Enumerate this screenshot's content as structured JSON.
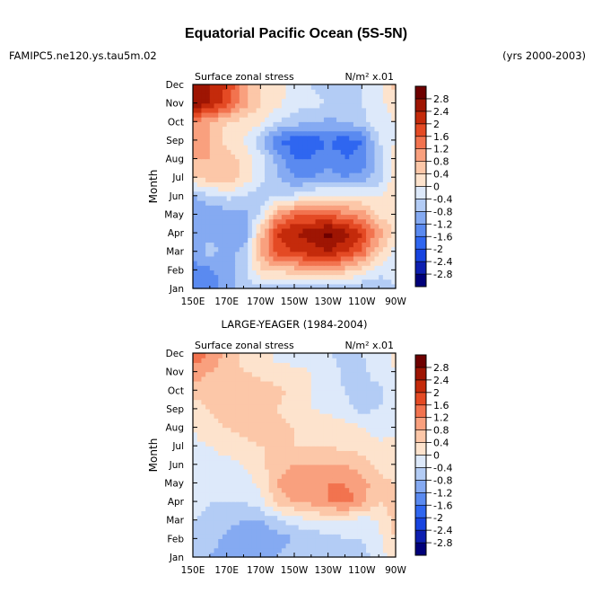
{
  "figure": {
    "title": "Equatorial Pacific Ocean (5S-5N)",
    "case_label": "FAMIPC5.ne120.ys.tau5m.02",
    "years_label": "(yrs 2000-2003)"
  },
  "colors": {
    "levels": [
      -2.8,
      -2.4,
      -2.0,
      -1.6,
      -1.2,
      -0.8,
      -0.4,
      0,
      0.4,
      0.8,
      1.2,
      1.6,
      2.0,
      2.4,
      2.8
    ],
    "palette": [
      "#00007a",
      "#0d1fb0",
      "#1744e0",
      "#2f66f0",
      "#5a8af0",
      "#85aaf2",
      "#b3ccf5",
      "#dde9fa",
      "#fde3cd",
      "#fcc7a8",
      "#f9a07e",
      "#f2734f",
      "#e44a24",
      "#c42a0b",
      "#9e1503",
      "#6e0000"
    ]
  },
  "chart_data": [
    {
      "type": "heatmap",
      "panel_title": "",
      "left_label": "Surface zonal stress",
      "right_label": "N/m² x.01",
      "ylabel": "Month",
      "x": [
        150,
        160,
        170,
        180,
        190,
        200,
        210,
        220,
        230,
        240,
        250,
        260,
        270
      ],
      "x_tick_values": [
        150,
        170,
        190,
        210,
        230,
        250,
        270
      ],
      "x_tick_labels": [
        "150E",
        "170E",
        "170W",
        "150W",
        "130W",
        "110W",
        "90W"
      ],
      "y_tick_labels": [
        "Jan",
        "Feb",
        "Mar",
        "Apr",
        "May",
        "Jun",
        "Jul",
        "Aug",
        "Sep",
        "Oct",
        "Nov",
        "Dec"
      ],
      "xlim": [
        150,
        270
      ],
      "ylim": [
        1,
        12
      ],
      "colorbar_labels": [
        "-2.8",
        "-2.4",
        "-2",
        "-1.6",
        "-1.2",
        "-0.8",
        "-0.4",
        "0",
        "0.4",
        "0.8",
        "1.2",
        "1.6",
        "2",
        "2.4",
        "2.8"
      ],
      "z": [
        [
          -1.3,
          -1.4,
          -1.1,
          -0.6,
          -0.5,
          -0.6,
          -0.8,
          -0.8,
          -0.6,
          -0.7,
          -0.8,
          -0.8,
          -0.4
        ],
        [
          -1.3,
          -1.3,
          -1.0,
          -0.5,
          0.3,
          0.5,
          0.6,
          0.8,
          0.9,
          0.6,
          0.2,
          -0.2,
          -0.3
        ],
        [
          -1.1,
          -0.6,
          -1.0,
          -0.7,
          0.8,
          1.8,
          2.0,
          2.2,
          2.4,
          2.0,
          1.5,
          0.5,
          -0.2
        ],
        [
          -1.2,
          -0.9,
          -1.2,
          -1.2,
          0.6,
          2.0,
          2.4,
          2.6,
          3.0,
          2.6,
          2.0,
          1.0,
          0.2
        ],
        [
          -1.2,
          -1.2,
          -1.0,
          -1.0,
          -0.3,
          1.0,
          1.5,
          1.6,
          1.6,
          1.3,
          1.0,
          0.3,
          0.2
        ],
        [
          -0.8,
          -0.5,
          -0.3,
          -0.4,
          -0.6,
          -0.4,
          -0.3,
          0.0,
          0.1,
          0.1,
          0.1,
          0.0,
          0.2
        ],
        [
          0.4,
          0.6,
          0.8,
          0.3,
          -0.3,
          -0.8,
          -1.2,
          -1.2,
          -1.0,
          -1.2,
          -1.0,
          -0.6,
          0.3
        ],
        [
          0.8,
          0.8,
          0.6,
          0.3,
          -0.2,
          -0.9,
          -1.6,
          -1.6,
          -1.4,
          -1.6,
          -1.5,
          -0.6,
          0.2
        ],
        [
          1.2,
          0.8,
          0.2,
          0.0,
          -0.7,
          -1.6,
          -1.8,
          -1.8,
          -1.6,
          -1.8,
          -1.6,
          -0.4,
          0.0
        ],
        [
          1.2,
          0.8,
          0.4,
          0.2,
          0.1,
          -0.4,
          -0.6,
          -0.8,
          -0.9,
          -0.8,
          -0.5,
          -0.2,
          0.0
        ],
        [
          2.8,
          2.4,
          1.8,
          1.0,
          0.4,
          0.1,
          -0.2,
          -0.3,
          -0.4,
          -0.5,
          -0.4,
          -0.2,
          0.3
        ],
        [
          2.8,
          2.4,
          2.0,
          1.0,
          0.4,
          0.2,
          -0.2,
          -0.4,
          -0.6,
          -0.8,
          -0.4,
          -0.1,
          0.5
        ]
      ]
    },
    {
      "type": "heatmap",
      "panel_title": "LARGE-YEAGER (1984-2004)",
      "left_label": "Surface zonal stress",
      "right_label": "N/m² x.01",
      "ylabel": "Month",
      "x": [
        150,
        160,
        170,
        180,
        190,
        200,
        210,
        220,
        230,
        240,
        250,
        260,
        270
      ],
      "x_tick_values": [
        150,
        170,
        190,
        210,
        230,
        250,
        270
      ],
      "x_tick_labels": [
        "150E",
        "170E",
        "170W",
        "150W",
        "130W",
        "110W",
        "90W"
      ],
      "y_tick_labels": [
        "Jan",
        "Feb",
        "Mar",
        "Apr",
        "May",
        "Jun",
        "Jul",
        "Aug",
        "Sep",
        "Oct",
        "Nov",
        "Dec"
      ],
      "xlim": [
        150,
        270
      ],
      "ylim": [
        1,
        12
      ],
      "colorbar_labels": [
        "-2.8",
        "-2.4",
        "-2",
        "-1.6",
        "-1.2",
        "-0.8",
        "-0.4",
        "0",
        "0.4",
        "0.8",
        "1.2",
        "1.6",
        "2",
        "2.4",
        "2.8"
      ],
      "z": [
        [
          -0.6,
          -0.8,
          -1.0,
          -1.2,
          -1.0,
          -0.8,
          -0.4,
          -0.4,
          -0.6,
          -0.7,
          -0.6,
          -0.2,
          0.2
        ],
        [
          -0.5,
          -0.6,
          -0.9,
          -1.2,
          -1.2,
          -1.0,
          -0.8,
          -0.7,
          -0.6,
          -0.4,
          -0.4,
          -0.1,
          0.4
        ],
        [
          -0.4,
          -0.5,
          -0.6,
          -0.8,
          -0.8,
          -0.5,
          -0.2,
          0.0,
          0.0,
          -0.1,
          -0.2,
          0.0,
          0.6
        ],
        [
          -0.3,
          -0.4,
          -0.4,
          -0.4,
          -0.2,
          0.6,
          0.8,
          0.9,
          1.2,
          1.4,
          1.0,
          0.4,
          0.5
        ],
        [
          -0.2,
          -0.3,
          -0.3,
          -0.2,
          0.1,
          0.8,
          1.0,
          1.0,
          1.2,
          1.2,
          1.0,
          0.5,
          0.4
        ],
        [
          -0.2,
          -0.2,
          -0.2,
          0.0,
          0.3,
          0.6,
          0.8,
          0.8,
          0.8,
          0.8,
          0.6,
          0.3,
          0.2
        ],
        [
          -0.1,
          0.0,
          0.2,
          0.3,
          0.4,
          0.4,
          0.4,
          0.4,
          0.4,
          0.3,
          0.2,
          0.1,
          0.1
        ],
        [
          0.0,
          0.3,
          0.4,
          0.5,
          0.6,
          0.5,
          0.4,
          0.3,
          0.3,
          0.2,
          0.0,
          -0.2,
          -0.1
        ],
        [
          0.2,
          0.4,
          0.6,
          0.6,
          0.5,
          0.4,
          0.2,
          0.0,
          -0.1,
          -0.3,
          -0.5,
          -0.4,
          -0.2
        ],
        [
          0.6,
          0.6,
          0.8,
          0.8,
          0.6,
          0.5,
          0.3,
          0.0,
          -0.2,
          -0.4,
          -0.6,
          -0.5,
          -0.1
        ],
        [
          1.0,
          0.8,
          0.6,
          0.4,
          0.3,
          0.1,
          0.1,
          0.0,
          -0.2,
          -0.5,
          -0.5,
          -0.2,
          0.0
        ],
        [
          1.6,
          1.2,
          0.6,
          0.3,
          0.1,
          -0.1,
          -0.2,
          -0.3,
          -0.4,
          -0.5,
          -0.4,
          -0.2,
          0.1
        ]
      ]
    }
  ]
}
